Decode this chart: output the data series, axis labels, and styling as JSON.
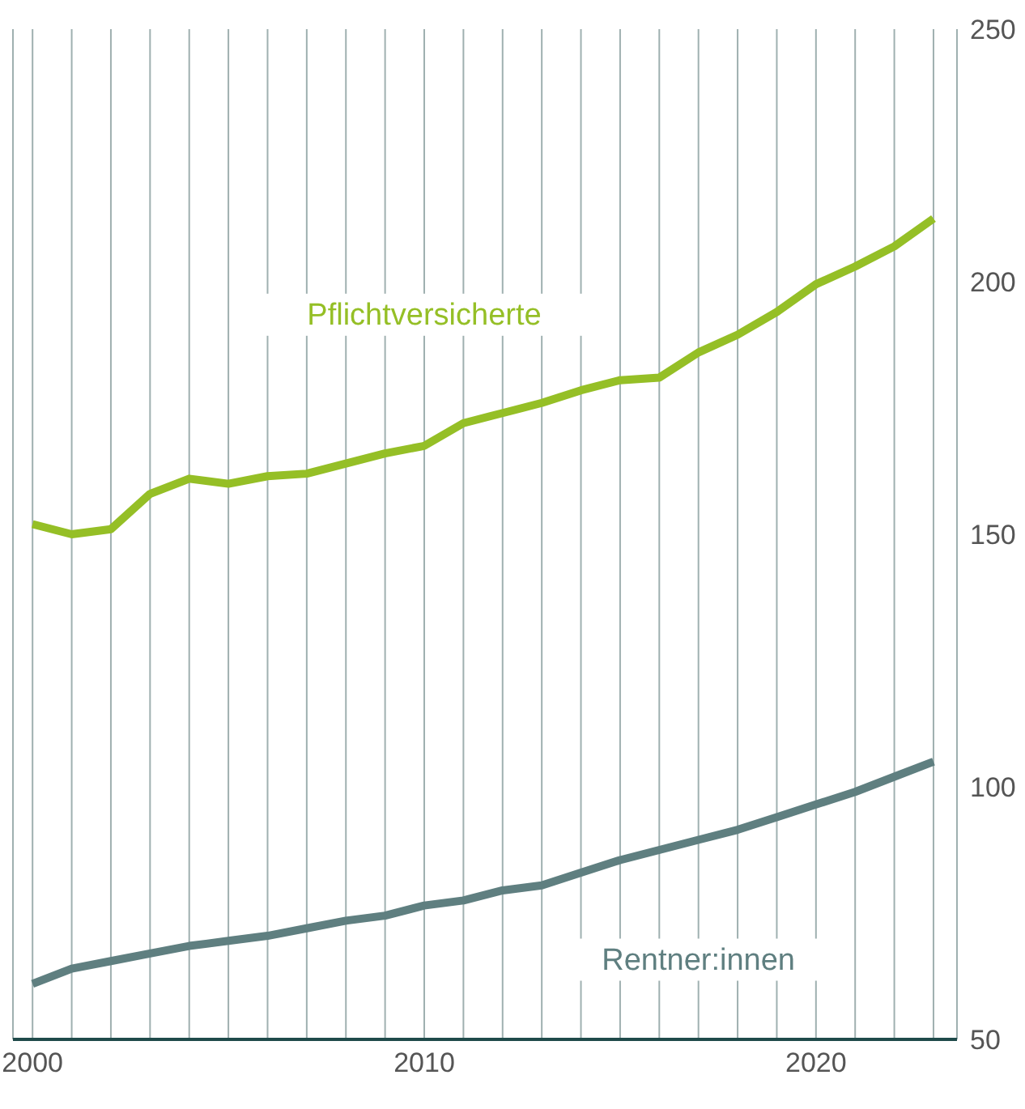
{
  "chart_data": {
    "type": "line",
    "x": [
      2000,
      2001,
      2002,
      2003,
      2004,
      2005,
      2006,
      2007,
      2008,
      2009,
      2010,
      2011,
      2012,
      2013,
      2014,
      2015,
      2016,
      2017,
      2018,
      2019,
      2020,
      2021,
      2022,
      2023
    ],
    "series": [
      {
        "name": "Pflichtversicherte",
        "color": "#95bf26",
        "values": [
          152,
          150,
          151,
          158,
          161,
          160,
          161.5,
          162,
          164,
          166,
          167.5,
          172,
          174,
          176,
          178.5,
          180.5,
          181,
          186,
          189.5,
          194,
          199.5,
          203,
          207,
          212.5
        ]
      },
      {
        "name": "Rentner:innen",
        "color": "#5f7f80",
        "values": [
          61,
          64,
          65.5,
          67,
          68.5,
          69.5,
          70.5,
          72,
          73.5,
          74.5,
          76.5,
          77.5,
          79.5,
          80.5,
          83,
          85.5,
          87.5,
          89.5,
          91.5,
          94,
          96.5,
          99,
          102,
          105
        ]
      }
    ],
    "xlim": [
      1999.5,
      2023.6
    ],
    "xticks": [
      2000,
      {
        "value": 2001,
        "label": null
      },
      {
        "value": 2002,
        "label": null
      },
      {
        "value": 2003,
        "label": null
      },
      {
        "value": 2004,
        "label": null
      },
      {
        "value": 2005,
        "label": null
      },
      {
        "value": 2006,
        "label": null
      },
      {
        "value": 2007,
        "label": null
      },
      {
        "value": 2008,
        "label": null
      },
      {
        "value": 2009,
        "label": null
      },
      2010,
      {
        "value": 2011,
        "label": null
      },
      {
        "value": 2012,
        "label": null
      },
      {
        "value": 2013,
        "label": null
      },
      {
        "value": 2014,
        "label": null
      },
      {
        "value": 2015,
        "label": null
      },
      {
        "value": 2016,
        "label": null
      },
      {
        "value": 2017,
        "label": null
      },
      {
        "value": 2018,
        "label": null
      },
      {
        "value": 2019,
        "label": null
      },
      2020,
      {
        "value": 2021,
        "label": null
      },
      {
        "value": 2022,
        "label": null
      },
      {
        "value": 2023,
        "label": null
      }
    ],
    "ylim": [
      50,
      250
    ],
    "yticks": [
      50,
      100,
      150,
      200,
      250
    ],
    "grid": "x",
    "marker": "none",
    "line_style": "solid"
  }
}
